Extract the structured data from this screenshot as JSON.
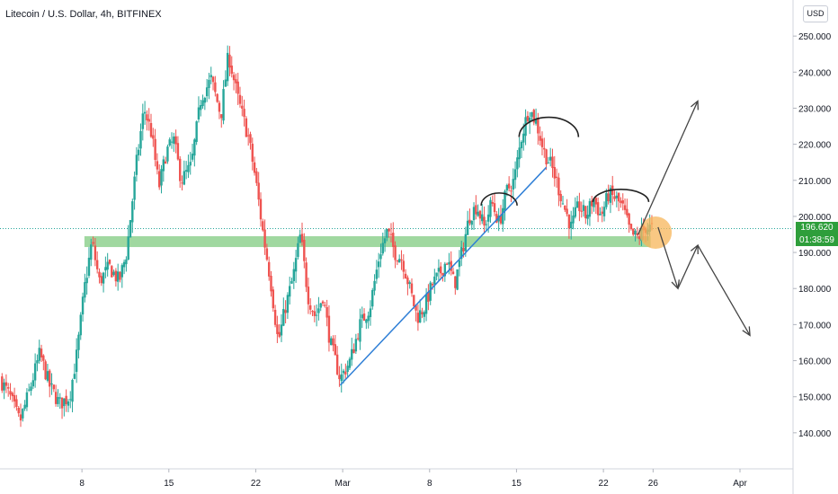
{
  "header": {
    "title": "Litecoin / U.S. Dollar, 4h, BITFINEX",
    "currency_button": "USD"
  },
  "price_tag": {
    "price": "196.620",
    "countdown": "01:38:59",
    "color": "#2e9e3b"
  },
  "colors": {
    "up": "#26a69a",
    "down": "#ef5350",
    "support_zone": "#8fd18f",
    "trendline": "#2f7fd6",
    "pattern": "#222222",
    "marker": "#f7b55a"
  },
  "chart_data": {
    "type": "candlestick",
    "title": "Litecoin / U.S. Dollar, 4h, BITFINEX",
    "ylim": [
      130,
      260
    ],
    "y_ticks": [
      140,
      150,
      160,
      170,
      180,
      190,
      200,
      210,
      220,
      230,
      240,
      250
    ],
    "y_tick_labels": [
      "140.000",
      "150.000",
      "160.000",
      "170.000",
      "180.000",
      "190.000",
      "200.000",
      "210.000",
      "220.000",
      "230.000",
      "240.000",
      "250.000"
    ],
    "x_ticks": [
      "8",
      "15",
      "22",
      "Mar",
      "8",
      "15",
      "22",
      "26",
      "Apr"
    ],
    "x_tick_days": [
      8,
      15,
      22,
      29,
      36,
      43,
      50,
      54,
      61
    ],
    "x_range_days": [
      1.4,
      65.2
    ],
    "current_price": 196.62,
    "support_zone": {
      "from_day": 8.2,
      "to_day": 53.8,
      "low": 191.5,
      "high": 194.5
    },
    "trendline": {
      "start": [
        28.8,
        153.2
      ],
      "end": [
        45.4,
        213.6
      ]
    },
    "path": [
      [
        1.4,
        155
      ],
      [
        2.2,
        150
      ],
      [
        3.0,
        143
      ],
      [
        3.8,
        152
      ],
      [
        4.6,
        162
      ],
      [
        5.4,
        153
      ],
      [
        6.2,
        148
      ],
      [
        7.0,
        150
      ],
      [
        7.6,
        162
      ],
      [
        8.2,
        180
      ],
      [
        8.8,
        193
      ],
      [
        9.4,
        182
      ],
      [
        10.2,
        186
      ],
      [
        11.0,
        182
      ],
      [
        11.6,
        190
      ],
      [
        12.4,
        215
      ],
      [
        13.0,
        230
      ],
      [
        13.6,
        223
      ],
      [
        14.2,
        208
      ],
      [
        14.8,
        218
      ],
      [
        15.4,
        221
      ],
      [
        16.0,
        210
      ],
      [
        16.8,
        214
      ],
      [
        17.6,
        233
      ],
      [
        18.4,
        238
      ],
      [
        19.2,
        228
      ],
      [
        19.8,
        245
      ],
      [
        20.6,
        232
      ],
      [
        21.4,
        222
      ],
      [
        22.0,
        210
      ],
      [
        22.6,
        195
      ],
      [
        23.2,
        182
      ],
      [
        23.8,
        165
      ],
      [
        24.4,
        175
      ],
      [
        25.0,
        183
      ],
      [
        25.6,
        195
      ],
      [
        26.2,
        178
      ],
      [
        26.8,
        172
      ],
      [
        27.4,
        178
      ],
      [
        28.0,
        165
      ],
      [
        28.8,
        155
      ],
      [
        29.6,
        160
      ],
      [
        30.4,
        170
      ],
      [
        31.2,
        175
      ],
      [
        32.0,
        190
      ],
      [
        32.6,
        196
      ],
      [
        33.2,
        190
      ],
      [
        33.8,
        188
      ],
      [
        34.4,
        180
      ],
      [
        35.0,
        172
      ],
      [
        35.6,
        175
      ],
      [
        36.2,
        181
      ],
      [
        36.8,
        184
      ],
      [
        37.4,
        188
      ],
      [
        38.0,
        181
      ],
      [
        38.6,
        190
      ],
      [
        39.2,
        200
      ],
      [
        39.8,
        203
      ],
      [
        40.4,
        197
      ],
      [
        41.0,
        204
      ],
      [
        41.6,
        198
      ],
      [
        42.2,
        207
      ],
      [
        42.8,
        210
      ],
      [
        43.4,
        222
      ],
      [
        44.0,
        230
      ],
      [
        44.6,
        226
      ],
      [
        45.2,
        218
      ],
      [
        45.8,
        214
      ],
      [
        46.2,
        210
      ],
      [
        46.8,
        203
      ],
      [
        47.4,
        197
      ],
      [
        48.0,
        203
      ],
      [
        48.6,
        200
      ],
      [
        49.2,
        205
      ],
      [
        49.8,
        200
      ],
      [
        50.4,
        206
      ],
      [
        51.0,
        205
      ],
      [
        51.6,
        202
      ],
      [
        52.2,
        195
      ],
      [
        52.8,
        194
      ],
      [
        53.4,
        197
      ],
      [
        54.0,
        196.6
      ]
    ],
    "annotations": {
      "arcs": [
        {
          "center_day": 41.6,
          "y": 203
        },
        {
          "center_day": 45.6,
          "y": 222
        },
        {
          "center_day": 51.4,
          "y": 204
        }
      ],
      "highlight_circle": {
        "day": 54.2,
        "price": 195.5
      },
      "arrows": [
        {
          "from": [
            52.8,
            195
          ],
          "to": [
            57.6,
            232
          ]
        },
        {
          "from": [
            54.4,
            197
          ],
          "to": [
            56.0,
            180
          ]
        },
        {
          "from": [
            56.0,
            180
          ],
          "to": [
            57.6,
            192
          ]
        },
        {
          "from": [
            57.6,
            192
          ],
          "to": [
            61.8,
            167
          ]
        }
      ]
    }
  }
}
